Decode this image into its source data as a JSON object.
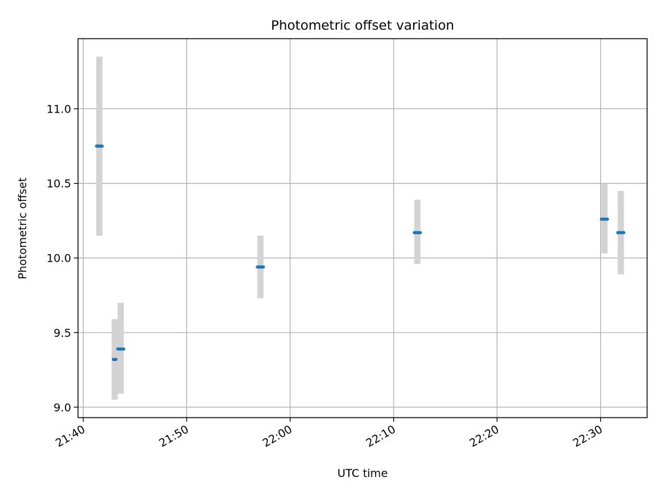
{
  "chart_data": {
    "type": "scatter",
    "title": "Photometric offset variation",
    "xlabel": "UTC time",
    "ylabel": "Photometric offset",
    "x_tick_labels": [
      "21:40",
      "21:50",
      "22:00",
      "22:10",
      "22:20",
      "22:30"
    ],
    "y_tick_labels": [
      "9.0",
      "9.5",
      "10.0",
      "10.5",
      "11.0"
    ],
    "x_ticks_min": [
      1300,
      1310,
      1320,
      1330,
      1340,
      1350
    ],
    "y_ticks": [
      9.0,
      9.5,
      10.0,
      10.5,
      11.0
    ],
    "xlim_min": [
      1299.5,
      1354.5
    ],
    "ylim": [
      8.93,
      11.47
    ],
    "grid": true,
    "series": [
      {
        "color": "#1f77b4",
        "errorbar_color": "#d3d3d3",
        "points": [
          {
            "t_start": "21:41:17",
            "t_end": "21:41:50",
            "y": 10.75,
            "y_low": 10.15,
            "y_high": 11.35
          },
          {
            "t_start": "21:42:55",
            "t_end": "21:43:10",
            "y": 9.32,
            "y_low": 9.05,
            "y_high": 9.59
          },
          {
            "t_start": "21:43:20",
            "t_end": "21:43:55",
            "y": 9.39,
            "y_low": 9.09,
            "y_high": 9.7
          },
          {
            "t_start": "21:56:50",
            "t_end": "21:57:25",
            "y": 9.94,
            "y_low": 9.73,
            "y_high": 10.15
          },
          {
            "t_start": "22:12:00",
            "t_end": "22:12:35",
            "y": 10.17,
            "y_low": 9.96,
            "y_high": 10.39
          },
          {
            "t_start": "22:30:05",
            "t_end": "22:30:40",
            "y": 10.26,
            "y_low": 10.03,
            "y_high": 10.5
          },
          {
            "t_start": "22:31:40",
            "t_end": "22:32:15",
            "y": 10.17,
            "y_low": 9.89,
            "y_high": 10.45
          }
        ]
      }
    ]
  }
}
